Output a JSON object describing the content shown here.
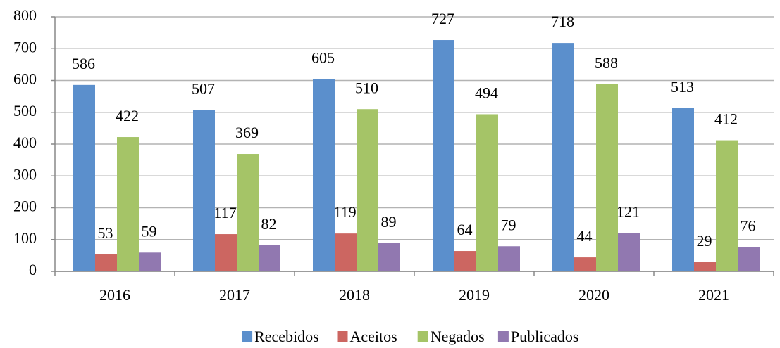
{
  "chart_data": {
    "type": "bar",
    "categories": [
      "2016",
      "2017",
      "2018",
      "2019",
      "2020",
      "2021"
    ],
    "series": [
      {
        "name": "Recebidos",
        "color": "#5b8fcc",
        "values": [
          586,
          507,
          605,
          727,
          718,
          513
        ]
      },
      {
        "name": "Aceitos",
        "color": "#cc6661",
        "values": [
          53,
          117,
          119,
          64,
          44,
          29
        ]
      },
      {
        "name": "Negados",
        "color": "#a5c467",
        "values": [
          422,
          369,
          510,
          494,
          588,
          412
        ]
      },
      {
        "name": "Publicados",
        "color": "#9178b0",
        "values": [
          59,
          82,
          89,
          79,
          121,
          76
        ]
      }
    ],
    "ylim": [
      0,
      800
    ],
    "yticks": [
      0,
      100,
      200,
      300,
      400,
      500,
      600,
      700,
      800
    ],
    "grid": true,
    "legend": "bottom"
  }
}
